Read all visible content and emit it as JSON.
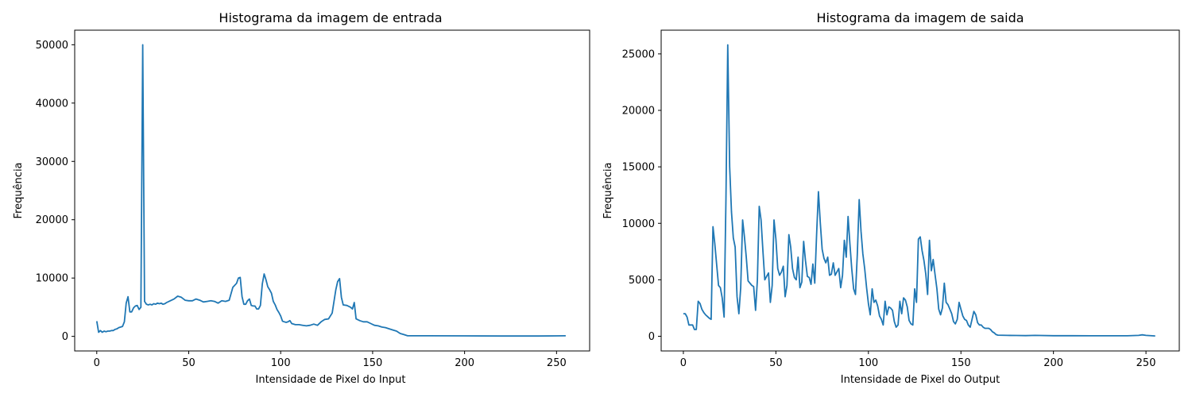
{
  "chart_data": [
    {
      "type": "line",
      "title": "Histograma da imagem de entrada",
      "xlabel": "Intensidade de Pixel do Input",
      "ylabel": "Frequência",
      "xlim": [
        -12,
        268
      ],
      "ylim": [
        -2500,
        52500
      ],
      "xticks": [
        0,
        50,
        100,
        150,
        200,
        250
      ],
      "yticks": [
        0,
        10000,
        20000,
        30000,
        40000,
        50000
      ],
      "grid": false,
      "series_color": "#1f77b4",
      "points": [
        [
          0,
          2600
        ],
        [
          1,
          700
        ],
        [
          2,
          1000
        ],
        [
          3,
          700
        ],
        [
          4,
          900
        ],
        [
          5,
          800
        ],
        [
          6,
          900
        ],
        [
          7,
          900
        ],
        [
          8,
          1000
        ],
        [
          9,
          1000
        ],
        [
          10,
          1200
        ],
        [
          11,
          1300
        ],
        [
          12,
          1500
        ],
        [
          13,
          1600
        ],
        [
          14,
          1700
        ],
        [
          15,
          2500
        ],
        [
          16,
          5700
        ],
        [
          17,
          6800
        ],
        [
          18,
          4200
        ],
        [
          19,
          4200
        ],
        [
          20,
          4900
        ],
        [
          21,
          5200
        ],
        [
          22,
          5300
        ],
        [
          23,
          4600
        ],
        [
          24,
          5000
        ],
        [
          25,
          50000
        ],
        [
          26,
          6000
        ],
        [
          27,
          5500
        ],
        [
          28,
          5400
        ],
        [
          29,
          5500
        ],
        [
          30,
          5400
        ],
        [
          31,
          5600
        ],
        [
          32,
          5500
        ],
        [
          33,
          5700
        ],
        [
          34,
          5600
        ],
        [
          35,
          5700
        ],
        [
          36,
          5500
        ],
        [
          37,
          5600
        ],
        [
          38,
          5800
        ],
        [
          40,
          6100
        ],
        [
          42,
          6400
        ],
        [
          44,
          6900
        ],
        [
          46,
          6700
        ],
        [
          48,
          6200
        ],
        [
          50,
          6100
        ],
        [
          52,
          6100
        ],
        [
          54,
          6400
        ],
        [
          56,
          6200
        ],
        [
          58,
          5900
        ],
        [
          60,
          6000
        ],
        [
          62,
          6100
        ],
        [
          64,
          6000
        ],
        [
          66,
          5700
        ],
        [
          68,
          6100
        ],
        [
          70,
          6000
        ],
        [
          72,
          6200
        ],
        [
          74,
          8400
        ],
        [
          76,
          9100
        ],
        [
          77,
          10000
        ],
        [
          78,
          10100
        ],
        [
          79,
          6800
        ],
        [
          80,
          5500
        ],
        [
          81,
          5500
        ],
        [
          82,
          6100
        ],
        [
          83,
          6400
        ],
        [
          84,
          5300
        ],
        [
          85,
          5200
        ],
        [
          86,
          5200
        ],
        [
          87,
          4700
        ],
        [
          88,
          4700
        ],
        [
          89,
          5300
        ],
        [
          90,
          9000
        ],
        [
          91,
          10700
        ],
        [
          92,
          9700
        ],
        [
          93,
          8500
        ],
        [
          94,
          8000
        ],
        [
          95,
          7400
        ],
        [
          96,
          6000
        ],
        [
          97,
          5400
        ],
        [
          98,
          4600
        ],
        [
          99,
          4100
        ],
        [
          100,
          3500
        ],
        [
          101,
          2600
        ],
        [
          102,
          2500
        ],
        [
          103,
          2400
        ],
        [
          104,
          2500
        ],
        [
          105,
          2700
        ],
        [
          106,
          2200
        ],
        [
          108,
          2000
        ],
        [
          110,
          2000
        ],
        [
          112,
          1900
        ],
        [
          114,
          1800
        ],
        [
          116,
          1900
        ],
        [
          118,
          2100
        ],
        [
          120,
          1900
        ],
        [
          122,
          2500
        ],
        [
          124,
          2900
        ],
        [
          126,
          3000
        ],
        [
          128,
          4000
        ],
        [
          129,
          6000
        ],
        [
          130,
          8000
        ],
        [
          131,
          9400
        ],
        [
          132,
          9900
        ],
        [
          133,
          6700
        ],
        [
          134,
          5400
        ],
        [
          136,
          5300
        ],
        [
          138,
          5000
        ],
        [
          139,
          4700
        ],
        [
          140,
          5800
        ],
        [
          141,
          3000
        ],
        [
          143,
          2700
        ],
        [
          145,
          2500
        ],
        [
          147,
          2500
        ],
        [
          149,
          2200
        ],
        [
          151,
          1900
        ],
        [
          153,
          1800
        ],
        [
          155,
          1600
        ],
        [
          157,
          1500
        ],
        [
          159,
          1300
        ],
        [
          161,
          1100
        ],
        [
          163,
          900
        ],
        [
          165,
          500
        ],
        [
          167,
          300
        ],
        [
          169,
          100
        ],
        [
          171,
          100
        ],
        [
          180,
          100
        ],
        [
          200,
          80
        ],
        [
          220,
          60
        ],
        [
          240,
          60
        ],
        [
          250,
          80
        ],
        [
          255,
          100
        ]
      ]
    },
    {
      "type": "line",
      "title": "Histograma da imagem de saida",
      "xlabel": "Intensidade de Pixel do Output",
      "ylabel": "Frequência",
      "xlim": [
        -12,
        268
      ],
      "ylim": [
        -1300,
        27100
      ],
      "xticks": [
        0,
        50,
        100,
        150,
        200,
        250
      ],
      "yticks": [
        0,
        5000,
        10000,
        15000,
        20000,
        25000
      ],
      "grid": false,
      "series_color": "#1f77b4",
      "points": [
        [
          0,
          2000
        ],
        [
          1,
          2000
        ],
        [
          2,
          1700
        ],
        [
          3,
          1000
        ],
        [
          4,
          1000
        ],
        [
          5,
          1000
        ],
        [
          6,
          600
        ],
        [
          7,
          600
        ],
        [
          8,
          3100
        ],
        [
          9,
          2900
        ],
        [
          10,
          2400
        ],
        [
          11,
          2100
        ],
        [
          12,
          1900
        ],
        [
          14,
          1600
        ],
        [
          15,
          1500
        ],
        [
          16,
          9700
        ],
        [
          17,
          8200
        ],
        [
          18,
          6300
        ],
        [
          19,
          4500
        ],
        [
          20,
          4300
        ],
        [
          21,
          3400
        ],
        [
          22,
          1700
        ],
        [
          23,
          12000
        ],
        [
          24,
          25800
        ],
        [
          25,
          15000
        ],
        [
          26,
          11000
        ],
        [
          27,
          8700
        ],
        [
          28,
          7900
        ],
        [
          29,
          3500
        ],
        [
          30,
          2000
        ],
        [
          31,
          4300
        ],
        [
          32,
          10300
        ],
        [
          33,
          8800
        ],
        [
          34,
          7000
        ],
        [
          35,
          4900
        ],
        [
          37,
          4500
        ],
        [
          38,
          4400
        ],
        [
          39,
          2300
        ],
        [
          40,
          5000
        ],
        [
          41,
          11500
        ],
        [
          42,
          10300
        ],
        [
          43,
          7500
        ],
        [
          44,
          5000
        ],
        [
          45,
          5300
        ],
        [
          46,
          5600
        ],
        [
          47,
          3000
        ],
        [
          48,
          4500
        ],
        [
          49,
          10300
        ],
        [
          50,
          8600
        ],
        [
          51,
          6000
        ],
        [
          52,
          5400
        ],
        [
          53,
          5700
        ],
        [
          54,
          6200
        ],
        [
          55,
          3500
        ],
        [
          56,
          4500
        ],
        [
          57,
          9000
        ],
        [
          58,
          7900
        ],
        [
          59,
          6000
        ],
        [
          60,
          5200
        ],
        [
          61,
          5000
        ],
        [
          62,
          7000
        ],
        [
          63,
          4300
        ],
        [
          64,
          4800
        ],
        [
          65,
          8400
        ],
        [
          66,
          6700
        ],
        [
          67,
          5300
        ],
        [
          68,
          5200
        ],
        [
          69,
          4600
        ],
        [
          70,
          6400
        ],
        [
          71,
          4700
        ],
        [
          72,
          9000
        ],
        [
          73,
          12800
        ],
        [
          74,
          10000
        ],
        [
          75,
          7700
        ],
        [
          76,
          6900
        ],
        [
          77,
          6500
        ],
        [
          78,
          7000
        ],
        [
          79,
          5400
        ],
        [
          80,
          5500
        ],
        [
          81,
          6500
        ],
        [
          82,
          5400
        ],
        [
          83,
          5700
        ],
        [
          84,
          6000
        ],
        [
          85,
          4300
        ],
        [
          86,
          5400
        ],
        [
          87,
          8500
        ],
        [
          88,
          7000
        ],
        [
          89,
          10600
        ],
        [
          90,
          8200
        ],
        [
          91,
          6000
        ],
        [
          92,
          4200
        ],
        [
          93,
          3700
        ],
        [
          94,
          7200
        ],
        [
          95,
          12100
        ],
        [
          96,
          9300
        ],
        [
          97,
          7300
        ],
        [
          98,
          6000
        ],
        [
          99,
          4300
        ],
        [
          100,
          2900
        ],
        [
          101,
          1900
        ],
        [
          102,
          4200
        ],
        [
          103,
          3000
        ],
        [
          104,
          3200
        ],
        [
          105,
          2700
        ],
        [
          106,
          1800
        ],
        [
          107,
          1500
        ],
        [
          108,
          1000
        ],
        [
          109,
          3100
        ],
        [
          110,
          1900
        ],
        [
          111,
          2600
        ],
        [
          112,
          2500
        ],
        [
          113,
          2300
        ],
        [
          114,
          1300
        ],
        [
          115,
          800
        ],
        [
          116,
          1000
        ],
        [
          117,
          3100
        ],
        [
          118,
          2000
        ],
        [
          119,
          3400
        ],
        [
          120,
          3200
        ],
        [
          121,
          2600
        ],
        [
          122,
          1400
        ],
        [
          123,
          1100
        ],
        [
          124,
          1000
        ],
        [
          125,
          4200
        ],
        [
          126,
          3000
        ],
        [
          127,
          8600
        ],
        [
          128,
          8800
        ],
        [
          129,
          7600
        ],
        [
          130,
          6700
        ],
        [
          131,
          5500
        ],
        [
          132,
          3700
        ],
        [
          133,
          8500
        ],
        [
          134,
          5800
        ],
        [
          135,
          6800
        ],
        [
          136,
          5500
        ],
        [
          137,
          4200
        ],
        [
          138,
          2400
        ],
        [
          139,
          1900
        ],
        [
          140,
          2500
        ],
        [
          141,
          4700
        ],
        [
          142,
          3000
        ],
        [
          143,
          2800
        ],
        [
          144,
          2400
        ],
        [
          145,
          2000
        ],
        [
          146,
          1300
        ],
        [
          147,
          1100
        ],
        [
          148,
          1500
        ],
        [
          149,
          3000
        ],
        [
          150,
          2400
        ],
        [
          151,
          1800
        ],
        [
          152,
          1500
        ],
        [
          153,
          1400
        ],
        [
          154,
          1000
        ],
        [
          155,
          800
        ],
        [
          156,
          1500
        ],
        [
          157,
          2200
        ],
        [
          158,
          1900
        ],
        [
          159,
          1200
        ],
        [
          160,
          1000
        ],
        [
          161,
          1000
        ],
        [
          162,
          800
        ],
        [
          163,
          700
        ],
        [
          165,
          700
        ],
        [
          166,
          600
        ],
        [
          167,
          400
        ],
        [
          168,
          300
        ],
        [
          169,
          150
        ],
        [
          170,
          100
        ],
        [
          175,
          80
        ],
        [
          180,
          70
        ],
        [
          185,
          60
        ],
        [
          190,
          80
        ],
        [
          200,
          50
        ],
        [
          210,
          50
        ],
        [
          220,
          40
        ],
        [
          230,
          40
        ],
        [
          240,
          40
        ],
        [
          246,
          80
        ],
        [
          248,
          130
        ],
        [
          250,
          80
        ],
        [
          255,
          30
        ]
      ]
    }
  ]
}
